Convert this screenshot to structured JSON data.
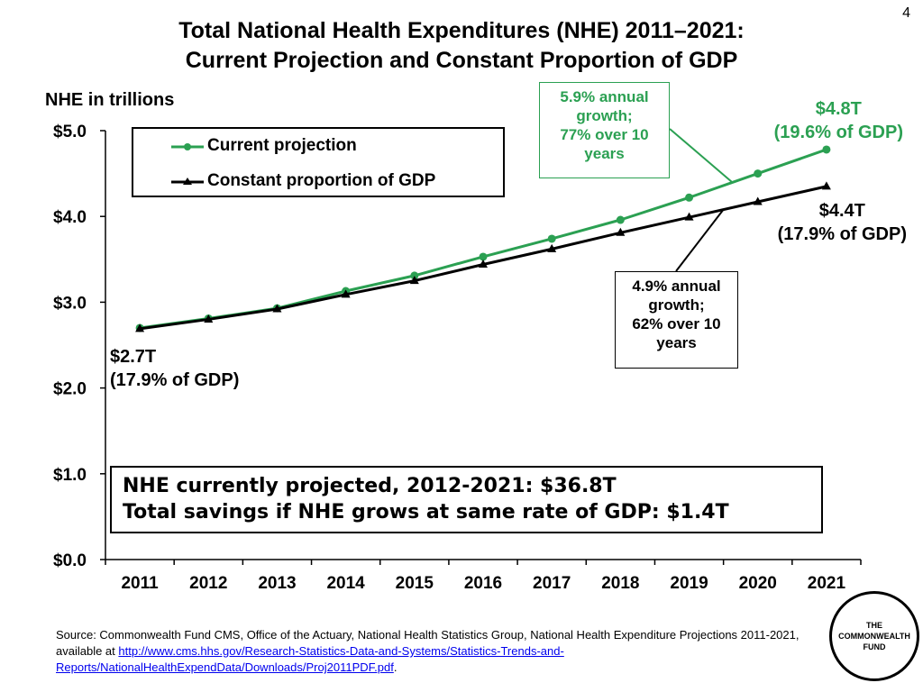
{
  "page_number": "4",
  "title_line1": "Total National Health Expenditures (NHE) 2011–2021:",
  "title_line2": "Current Projection and Constant Proportion of GDP",
  "colors": {
    "current": "#2ba052",
    "constant": "#000000"
  },
  "chart_data": {
    "type": "line",
    "title": "Total National Health Expenditures (NHE) 2011–2021: Current Projection and Constant Proportion of GDP",
    "ylabel": "NHE in trillions",
    "xlabel": "",
    "categories": [
      "2011",
      "2012",
      "2013",
      "2014",
      "2015",
      "2016",
      "2017",
      "2018",
      "2019",
      "2020",
      "2021"
    ],
    "yticks": [
      "$0.0",
      "$1.0",
      "$2.0",
      "$3.0",
      "$4.0",
      "$5.0"
    ],
    "ylim": [
      0,
      5
    ],
    "grid": false,
    "legend_position": "top-left",
    "series": [
      {
        "name": "Current projection",
        "marker": "circle",
        "color": "#2ba052",
        "values": [
          2.7,
          2.81,
          2.93,
          3.13,
          3.31,
          3.53,
          3.74,
          3.96,
          4.22,
          4.5,
          4.78
        ]
      },
      {
        "name": "Constant proportion of GDP",
        "marker": "triangle",
        "color": "#000000",
        "values": [
          2.69,
          2.8,
          2.92,
          3.09,
          3.25,
          3.44,
          3.62,
          3.81,
          3.99,
          4.17,
          4.35
        ]
      }
    ],
    "annotations": {
      "current_growth": [
        "5.9% annual",
        "growth;",
        "77% over 10",
        "years"
      ],
      "constant_growth": [
        "4.9% annual",
        "growth;",
        "62% over 10",
        "years"
      ],
      "end_current": [
        "$4.8T",
        "(19.6% of GDP)"
      ],
      "end_constant": [
        "$4.4T",
        "(17.9% of GDP)"
      ],
      "start": [
        "$2.7T",
        "(17.9% of GDP)"
      ]
    }
  },
  "summary_line1": "NHE currently projected, 2012-2021: $36.8T",
  "summary_line2": "Total savings if NHE grows at same rate of GDP: $1.4T",
  "source_text": "Source: Commonwealth Fund CMS, Office of the Actuary, National Health Statistics Group, National Health Expenditure Projections 2011-2021, available at ",
  "source_link": "http://www.cms.hhs.gov/Research-Statistics-Data-and-Systems/Statistics-Trends-and-Reports/NationalHealthExpendData/Downloads/Proj2011PDF.pdf",
  "source_end": ".",
  "logo": [
    "THE",
    "COMMONWEALTH",
    "FUND"
  ]
}
